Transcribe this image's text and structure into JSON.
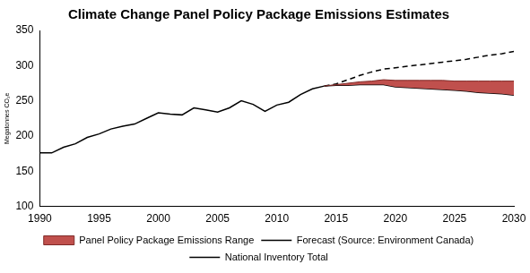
{
  "chart_data": {
    "type": "line",
    "title": "Climate Change Panel Policy Package Emissions Estimates",
    "y_label": "Megatonnes CO₂e",
    "x": [
      1990,
      1991,
      1992,
      1993,
      1994,
      1995,
      1996,
      1997,
      1998,
      1999,
      2000,
      2001,
      2002,
      2003,
      2004,
      2005,
      2006,
      2007,
      2008,
      2009,
      2010,
      2011,
      2012,
      2013,
      2014,
      2015,
      2016,
      2017,
      2018,
      2019,
      2020,
      2021,
      2022,
      2023,
      2024,
      2025,
      2026,
      2027,
      2028,
      2029,
      2030
    ],
    "xlim": [
      1990,
      2030
    ],
    "xticks": [
      1990,
      1995,
      2000,
      2005,
      2010,
      2015,
      2020,
      2025,
      2030
    ],
    "ylim": [
      100,
      350
    ],
    "yticks": [
      100,
      150,
      200,
      250,
      300,
      350
    ],
    "grid": false,
    "legend": "bottom",
    "series": [
      {
        "name": "Panel Policy Package Emissions Range",
        "type": "range",
        "color": "#c0504d",
        "low": [
          null,
          null,
          null,
          null,
          null,
          null,
          null,
          null,
          null,
          null,
          null,
          null,
          null,
          null,
          null,
          null,
          null,
          null,
          null,
          null,
          null,
          null,
          null,
          null,
          271,
          272,
          272,
          273,
          273,
          273,
          270,
          269,
          268,
          267,
          266,
          265,
          264,
          262,
          261,
          260,
          258
        ],
        "high": [
          null,
          null,
          null,
          null,
          null,
          null,
          null,
          null,
          null,
          null,
          null,
          null,
          null,
          null,
          null,
          null,
          null,
          null,
          null,
          null,
          null,
          null,
          null,
          null,
          271,
          273,
          275,
          277,
          278,
          280,
          279,
          279,
          279,
          279,
          279,
          278,
          278,
          278,
          278,
          278,
          278
        ]
      },
      {
        "name": "Forecast (Source: Environment Canada)",
        "color": "#000000",
        "line_style": "dashed",
        "values": [
          null,
          null,
          null,
          null,
          null,
          null,
          null,
          null,
          null,
          null,
          null,
          null,
          null,
          null,
          null,
          null,
          null,
          null,
          null,
          null,
          null,
          null,
          null,
          null,
          271,
          274,
          280,
          286,
          291,
          295,
          297,
          299,
          301,
          303,
          305,
          307,
          309,
          312,
          315,
          317,
          320
        ]
      },
      {
        "name": "National Inventory Total",
        "color": "#000000",
        "line_style": "solid",
        "values": [
          176,
          176,
          184,
          189,
          198,
          203,
          210,
          214,
          217,
          225,
          233,
          231,
          230,
          240,
          237,
          234,
          240,
          250,
          245,
          235,
          244,
          248,
          259,
          267,
          271,
          null,
          null,
          null,
          null,
          null,
          null,
          null,
          null,
          null,
          null,
          null,
          null,
          null,
          null,
          null,
          null
        ]
      }
    ]
  }
}
